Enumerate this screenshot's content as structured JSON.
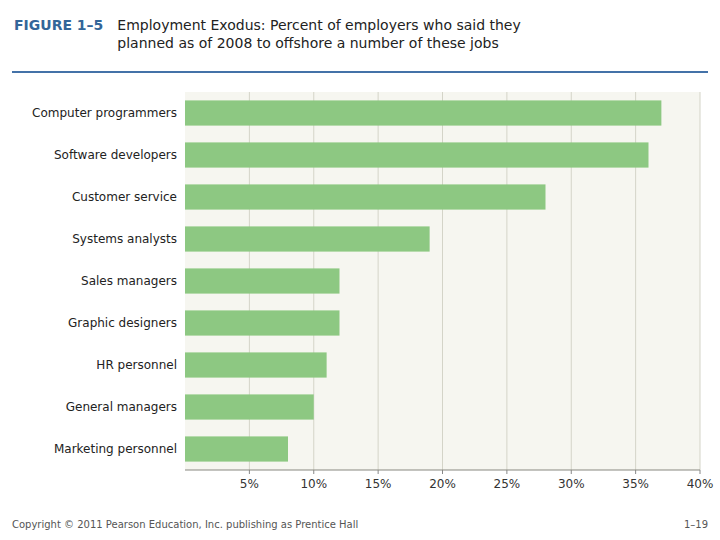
{
  "chart_data": {
    "type": "bar",
    "orientation": "horizontal",
    "title": "Employment Exodus: Percent of employers who said they\nplanned as of 2008 to offshore a number of these jobs",
    "annotations": [
      "FIGURE 1–5",
      "Copyright © 2011 Pearson Education, Inc. publishing as Prentice Hall",
      "1–19"
    ],
    "categories": [
      "Marketing personnel",
      "General managers",
      "HR personnel",
      "Graphic designers",
      "Sales managers",
      "Systems analysts",
      "Customer service",
      "Software developers",
      "Computer programmers"
    ],
    "values": [
      8,
      10,
      11,
      12,
      12,
      19,
      28,
      36,
      37
    ],
    "color": "#8DC882",
    "xlim": [
      0,
      40
    ],
    "xticks": [
      {
        "value": 5,
        "label": "5%"
      },
      {
        "value": 10,
        "label": "10%"
      },
      {
        "value": 15,
        "label": "15%"
      },
      {
        "value": 20,
        "label": "20%"
      },
      {
        "value": 25,
        "label": "25%"
      },
      {
        "value": 30,
        "label": "30%"
      },
      {
        "value": 35,
        "label": "35%"
      },
      {
        "value": 40,
        "label": "40%"
      }
    ],
    "grid": true
  }
}
